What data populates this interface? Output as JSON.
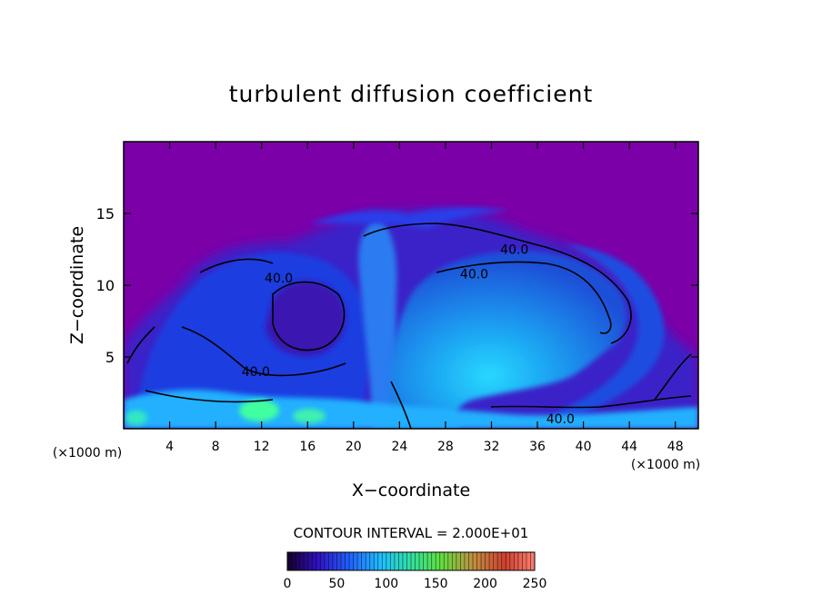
{
  "chart_data": {
    "type": "heatmap",
    "title": "turbulent diffusion coefficient",
    "xlabel": "X−coordinate",
    "ylabel": "Z−coordinate",
    "x_unit_label": "(×1000 m)",
    "y_unit_label": "(×1000 m)",
    "xlim": [
      0,
      50
    ],
    "ylim": [
      0,
      20
    ],
    "x_ticks": [
      4,
      8,
      12,
      16,
      20,
      24,
      28,
      32,
      36,
      40,
      44,
      48
    ],
    "y_ticks": [
      5,
      10,
      15
    ],
    "contour_interval_text": "CONTOUR INTERVAL = 2.000E+01",
    "contour_labels": [
      {
        "text": "40.0",
        "x": 34,
        "y": 12.5
      },
      {
        "text": "40.0",
        "x": 30.5,
        "y": 10.8
      },
      {
        "text": "40.0",
        "x": 13.5,
        "y": 10.5
      },
      {
        "text": "40.0",
        "x": 11.5,
        "y": 4
      },
      {
        "text": "40.0",
        "x": 38,
        "y": 0.7
      }
    ],
    "colorbar": {
      "min": 0,
      "max": 250,
      "tick_values": [
        0,
        50,
        100,
        150,
        200,
        250
      ],
      "tick_labels": [
        "0",
        "50",
        "100",
        "150",
        "200",
        "250"
      ]
    },
    "colors": {
      "background_field": "#7b00a8",
      "low": "#1a1ae0",
      "mid": "#2aa8ff",
      "high": "#40ffa0",
      "contour_line": "#000000"
    }
  }
}
